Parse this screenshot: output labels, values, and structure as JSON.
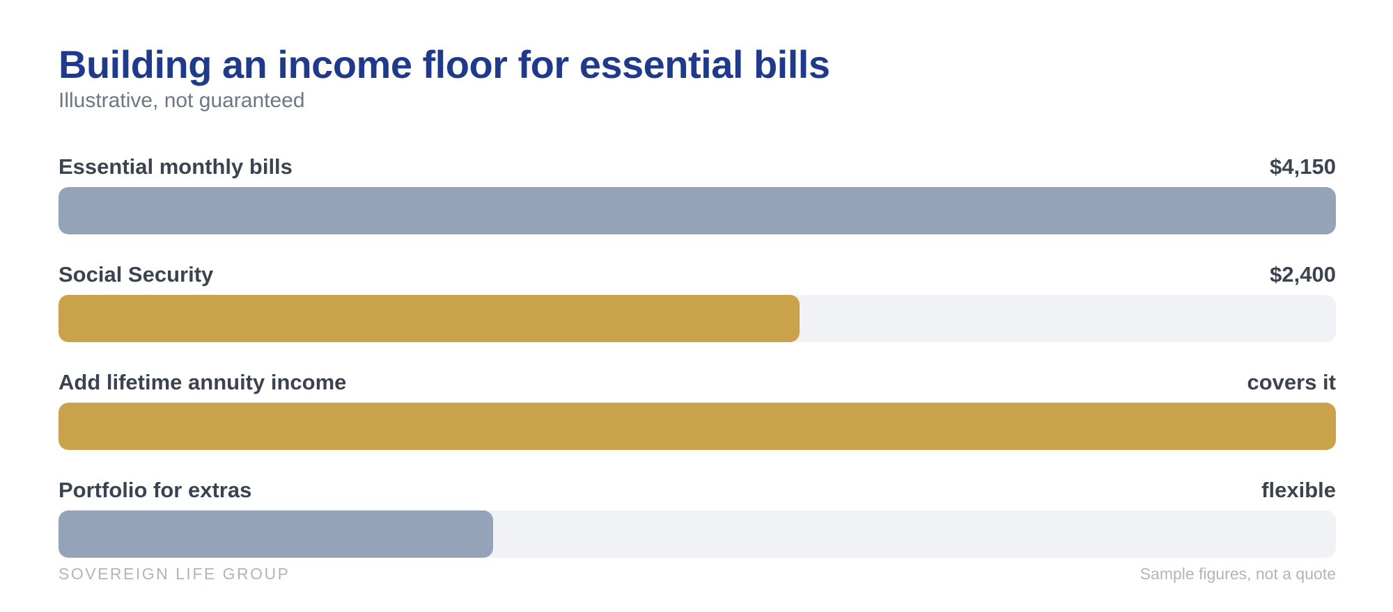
{
  "colors": {
    "title": "#1f3a8a",
    "track": "#f1f2f5",
    "slate": "#94a3b8",
    "gold": "#c9a24b"
  },
  "header": {
    "title": "Building an income floor for essential bills",
    "subtitle": "Illustrative, not guaranteed"
  },
  "chart_data": {
    "type": "bar",
    "orientation": "horizontal",
    "title": "Building an income floor for essential bills",
    "subtitle": "Illustrative, not guaranteed",
    "categories": [
      "Essential monthly bills",
      "Social Security",
      "Add lifetime annuity income",
      "Portfolio for extras"
    ],
    "bars": [
      {
        "label": "Essential monthly bills",
        "value_label": "$4,150",
        "fill_fraction": 1.0,
        "color": "#94a3b8",
        "show_track": false
      },
      {
        "label": "Social Security",
        "value_label": "$2,400",
        "fill_fraction": 0.58,
        "color": "#c9a24b",
        "show_track": true
      },
      {
        "label": "Add lifetime annuity income",
        "value_label": "covers it",
        "fill_fraction": 1.0,
        "color": "#c9a24b",
        "show_track": false
      },
      {
        "label": "Portfolio for extras",
        "value_label": "flexible",
        "fill_fraction": 0.34,
        "color": "#94a3b8",
        "show_track": true
      }
    ]
  },
  "footer": {
    "brand": "SOVEREIGN LIFE GROUP",
    "note": "Sample figures, not a quote"
  }
}
